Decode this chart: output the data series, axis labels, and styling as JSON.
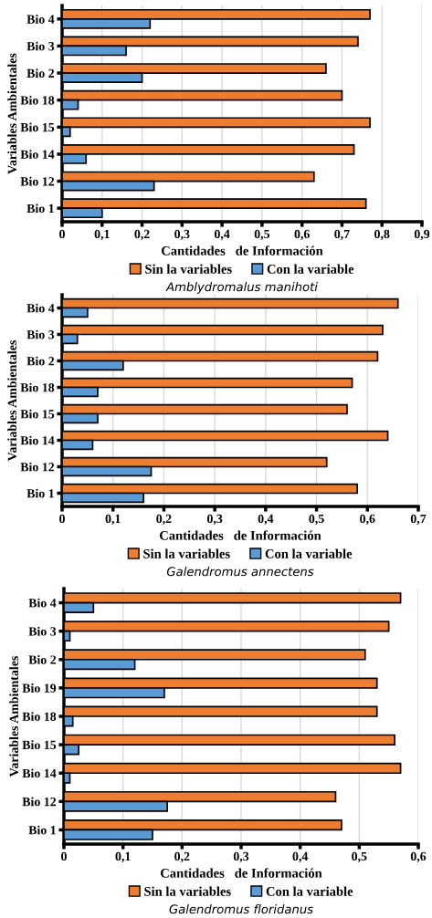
{
  "chart_data": [
    {
      "type": "bar",
      "orientation": "horizontal",
      "title": "Amblydromalus manihoti",
      "xlabel": "Cantidades   de Información",
      "ylabel": "Variables Ambientales",
      "categories": [
        "Bio 4",
        "Bio 3",
        "Bio 2",
        "Bio 18",
        "Bio 15",
        "Bio 14",
        "Bio 12",
        "Bio 1"
      ],
      "series": [
        {
          "name": "Sin la variables",
          "color": "#ed7d31",
          "values": [
            0.77,
            0.74,
            0.66,
            0.7,
            0.77,
            0.73,
            0.63,
            0.76
          ]
        },
        {
          "name": "Con la variable",
          "color": "#5b9bd5",
          "values": [
            0.22,
            0.16,
            0.2,
            0.04,
            0.02,
            0.06,
            0.23,
            0.1
          ]
        }
      ],
      "xlim": [
        0,
        0.9
      ],
      "xticks": [
        {
          "value": 0,
          "label": "0"
        },
        {
          "value": 0.1,
          "label": "0,1"
        },
        {
          "value": 0.2,
          "label": "0,2"
        },
        {
          "value": 0.3,
          "label": "0,3"
        },
        {
          "value": 0.4,
          "label": "0,4"
        },
        {
          "value": 0.5,
          "label": "0,5"
        },
        {
          "value": 0.6,
          "label": "0,6"
        },
        {
          "value": 0.7,
          "label": "0,7"
        },
        {
          "value": 0.8,
          "label": "0,8"
        },
        {
          "value": 0.9,
          "label": "0,9"
        }
      ],
      "grid": "x",
      "legend": "bottom"
    },
    {
      "type": "bar",
      "orientation": "horizontal",
      "title": "Galendromus annectens",
      "xlabel": "Cantidades   de Información",
      "ylabel": "Variables Ambientales",
      "categories": [
        "Bio 4",
        "Bio 3",
        "Bio 2",
        "Bio 18",
        "Bio 15",
        "Bio 14",
        "Bio 12",
        "Bio 1"
      ],
      "series": [
        {
          "name": "Sin la variables",
          "color": "#ed7d31",
          "values": [
            0.66,
            0.63,
            0.62,
            0.57,
            0.56,
            0.64,
            0.52,
            0.58
          ]
        },
        {
          "name": "Con la variable",
          "color": "#5b9bd5",
          "values": [
            0.05,
            0.03,
            0.12,
            0.07,
            0.07,
            0.06,
            0.175,
            0.16
          ]
        }
      ],
      "xlim": [
        0,
        0.7
      ],
      "xticks": [
        {
          "value": 0,
          "label": "0"
        },
        {
          "value": 0.1,
          "label": "0,1"
        },
        {
          "value": 0.2,
          "label": "0,2"
        },
        {
          "value": 0.3,
          "label": "0,3"
        },
        {
          "value": 0.4,
          "label": "0,4"
        },
        {
          "value": 0.5,
          "label": "0,5"
        },
        {
          "value": 0.6,
          "label": "0,6"
        },
        {
          "value": 0.7,
          "label": "0,7"
        }
      ],
      "grid": "x",
      "legend": "bottom"
    },
    {
      "type": "bar",
      "orientation": "horizontal",
      "title": "Galendromus floridanus",
      "xlabel": "Cantidades   de Información",
      "ylabel": "Variables Ambientales",
      "categories": [
        "Bio 4",
        "Bio 3",
        "Bio 2",
        "Bio 19",
        "Bio 18",
        "Bio 15",
        "Bio 14",
        "Bio 12",
        "Bio 1"
      ],
      "series": [
        {
          "name": "Sin la variables",
          "color": "#ed7d31",
          "values": [
            0.57,
            0.55,
            0.51,
            0.53,
            0.53,
            0.56,
            0.57,
            0.46,
            0.47
          ]
        },
        {
          "name": "Con la variable",
          "color": "#5b9bd5",
          "values": [
            0.05,
            0.01,
            0.12,
            0.17,
            0.015,
            0.025,
            0.01,
            0.175,
            0.15
          ]
        }
      ],
      "xlim": [
        0,
        0.6
      ],
      "xticks": [
        {
          "value": 0,
          "label": "0"
        },
        {
          "value": 0.1,
          "label": "0,1"
        },
        {
          "value": 0.2,
          "label": "0,2"
        },
        {
          "value": 0.3,
          "label": "0,3"
        },
        {
          "value": 0.4,
          "label": "0,4"
        },
        {
          "value": 0.5,
          "label": "0,5"
        },
        {
          "value": 0.6,
          "label": "0,6"
        }
      ],
      "grid": "x",
      "legend": "bottom"
    }
  ]
}
